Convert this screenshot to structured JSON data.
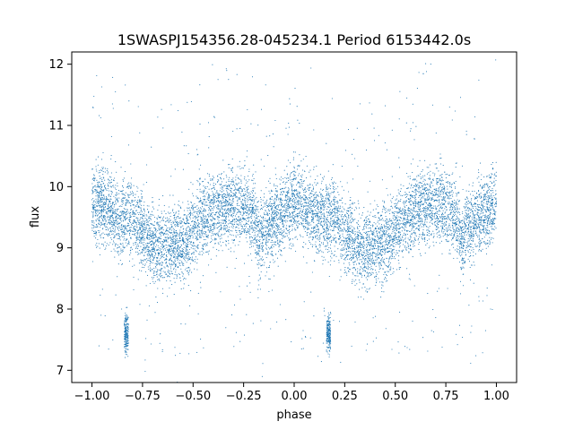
{
  "chart_data": {
    "type": "scatter",
    "title": "1SWASPJ154356.28-045234.1 Period 6153442.0s",
    "xlabel": "phase",
    "ylabel": "flux",
    "xlim": [
      -1.1,
      1.1
    ],
    "ylim": [
      6.8,
      12.2
    ],
    "xticks": [
      -1.0,
      -0.75,
      -0.5,
      -0.25,
      0.0,
      0.25,
      0.5,
      0.75,
      1.0
    ],
    "xtick_labels": [
      "−1.00",
      "−0.75",
      "−0.50",
      "−0.25",
      "0.00",
      "0.25",
      "0.50",
      "0.75",
      "1.00"
    ],
    "yticks": [
      7,
      8,
      9,
      10,
      11,
      12
    ],
    "ytick_labels": [
      "7",
      "8",
      "9",
      "10",
      "11",
      "12"
    ],
    "grid": false,
    "marker_color": "#1f77b4",
    "series": [
      {
        "name": "",
        "description_points": [
          {
            "x": -1.0,
            "y": 9.75
          },
          {
            "x": -0.95,
            "y": 9.7
          },
          {
            "x": -0.9,
            "y": 9.55
          },
          {
            "x": -0.85,
            "y": 9.45
          },
          {
            "x": -0.8,
            "y": 9.55
          },
          {
            "x": -0.75,
            "y": 9.25
          },
          {
            "x": -0.7,
            "y": 9.05
          },
          {
            "x": -0.65,
            "y": 9.0
          },
          {
            "x": -0.6,
            "y": 9.05
          },
          {
            "x": -0.55,
            "y": 9.1
          },
          {
            "x": -0.5,
            "y": 9.3
          },
          {
            "x": -0.45,
            "y": 9.5
          },
          {
            "x": -0.4,
            "y": 9.6
          },
          {
            "x": -0.35,
            "y": 9.65
          },
          {
            "x": -0.3,
            "y": 9.7
          },
          {
            "x": -0.25,
            "y": 9.7
          },
          {
            "x": -0.2,
            "y": 9.55
          },
          {
            "x": -0.17,
            "y": 9.0
          },
          {
            "x": -0.15,
            "y": 9.35
          },
          {
            "x": -0.1,
            "y": 9.45
          },
          {
            "x": -0.05,
            "y": 9.6
          },
          {
            "x": 0.0,
            "y": 9.75
          },
          {
            "x": 0.05,
            "y": 9.7
          },
          {
            "x": 0.1,
            "y": 9.55
          },
          {
            "x": 0.15,
            "y": 9.45
          },
          {
            "x": 0.2,
            "y": 9.55
          },
          {
            "x": 0.25,
            "y": 9.25
          },
          {
            "x": 0.3,
            "y": 9.05
          },
          {
            "x": 0.35,
            "y": 9.0
          },
          {
            "x": 0.4,
            "y": 9.05
          },
          {
            "x": 0.45,
            "y": 9.1
          },
          {
            "x": 0.5,
            "y": 9.3
          },
          {
            "x": 0.55,
            "y": 9.5
          },
          {
            "x": 0.6,
            "y": 9.6
          },
          {
            "x": 0.65,
            "y": 9.65
          },
          {
            "x": 0.7,
            "y": 9.7
          },
          {
            "x": 0.75,
            "y": 9.7
          },
          {
            "x": 0.8,
            "y": 9.55
          },
          {
            "x": 0.83,
            "y": 9.0
          },
          {
            "x": 0.85,
            "y": 9.35
          },
          {
            "x": 0.9,
            "y": 9.45
          },
          {
            "x": 0.95,
            "y": 9.6
          },
          {
            "x": 1.0,
            "y": 9.75
          }
        ],
        "scatter_halfwidth": 0.55,
        "dip_clusters": [
          {
            "x": -0.83,
            "y": 7.6,
            "spread": 0.25
          },
          {
            "x": 0.17,
            "y": 7.6,
            "spread": 0.25
          }
        ]
      }
    ]
  }
}
